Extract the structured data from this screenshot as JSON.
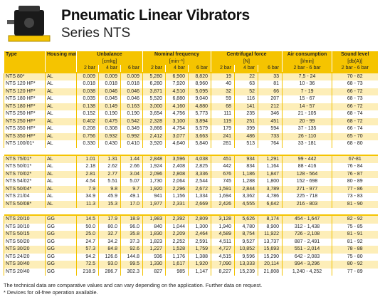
{
  "header": {
    "title": "Pneumatic Linear Vibrators",
    "subtitle": "Series NTS"
  },
  "table": {
    "head": [
      "Type",
      "Housing material",
      "Unbalance",
      "Nominal frequency",
      "Centrifugal force",
      "Air consumption",
      "Sound level"
    ],
    "units": [
      "[cmkg]",
      "[min⁻¹]",
      "[N]",
      "[l/min]",
      "[db(A)]"
    ],
    "pressures": [
      "2 bar",
      "4 bar",
      "6 bar",
      "2 bar",
      "4 bar",
      "6 bar",
      "2 bar",
      "4 bar",
      "6 bar",
      "2 bar - 6 bar",
      "2 bar - 6 bar"
    ],
    "groups": [
      [
        [
          "NTS 80*",
          "AL",
          "0.009",
          "0.009",
          "0.009",
          "5,280",
          "6,900",
          "8,820",
          "19",
          "22",
          "33",
          "7,5 - 24",
          "70 - 82"
        ],
        [
          "NTS 120 HF*",
          "AL",
          "0.018",
          "0.018",
          "0.018",
          "6,280",
          "7,920",
          "8,960",
          "40",
          "63",
          "81",
          "10 - 36",
          "68 - 73"
        ],
        [
          "NTS 120 HF*",
          "AL",
          "0.038",
          "0.046",
          "0.046",
          "3,871",
          "4,510",
          "5,095",
          "32",
          "52",
          "66",
          "7 - 19",
          "66 - 72"
        ],
        [
          "NTS 180 HF*",
          "AL",
          "0.035",
          "0.045",
          "0.046",
          "5,520",
          "6,880",
          "9,040",
          "59",
          "116",
          "207",
          "15 - 67",
          "68 - 73"
        ],
        [
          "NTS 180 HF*",
          "AL",
          "0.138",
          "0.149",
          "0.163",
          "3,000",
          "4,160",
          "4,880",
          "68",
          "141",
          "212",
          "14 - 57",
          "66 - 72"
        ],
        [
          "NTS 250 HF*",
          "AL",
          "0.152",
          "0.190",
          "0.190",
          "3,654",
          "4,756",
          "5,773",
          "111",
          "235",
          "346",
          "21 - 105",
          "68 - 74"
        ],
        [
          "NTS 250 HF*",
          "AL",
          "0.402",
          "0.475",
          "0.542",
          "2,328",
          "3,100",
          "3,894",
          "119",
          "251",
          "451",
          "20 - 99",
          "68 - 72"
        ],
        [
          "NTS 350 HF*",
          "AL",
          "0.208",
          "0.308",
          "0.349",
          "3,866",
          "4,754",
          "5,579",
          "179",
          "399",
          "594",
          "37 - 135",
          "66 - 74"
        ],
        [
          "NTS 350 HF*",
          "AL",
          "0.756",
          "0.932",
          "0.992",
          "2,412",
          "3,077",
          "3,663",
          "241",
          "486",
          "733",
          "26 - 110",
          "65 - 70"
        ],
        [
          "NTS 100/01*",
          "AL",
          "0.330",
          "0.430",
          "0.410",
          "3,920",
          "4,640",
          "5,840",
          "281",
          "513",
          "764",
          "33 - 181",
          "68 - 80"
        ]
      ],
      [
        [
          "NTS 75/01*",
          "AL",
          "1.01",
          "1.31",
          "1.44",
          "2,848",
          "3,596",
          "4,038",
          "451",
          "934",
          "1,291",
          "99 - 442",
          "67-81"
        ],
        [
          "NTS 50/01*",
          "AL",
          "2.18",
          "2.62",
          "2.66",
          "1,924",
          "2,408",
          "2,825",
          "442",
          "834",
          "1,164",
          "88 - 416",
          "76 - 84"
        ],
        [
          "NTS 70/02*",
          "AL",
          "2.81",
          "2.77",
          "3.04",
          "2,096",
          "2,808",
          "3,336",
          "676",
          "1,186",
          "1,847",
          "128 - 564",
          "76 - 87"
        ],
        [
          "NTS 54/02*",
          "AL",
          "4.54",
          "5.51",
          "5.07",
          "1,730",
          "2,064",
          "2,544",
          "745",
          "1,288",
          "1,800",
          "152 - 698",
          "80 - 89"
        ],
        [
          "NTS 50/04*",
          "AL",
          "7.9",
          "9.8",
          "9.7",
          "1,920",
          "2,296",
          "2,672",
          "1,591",
          "2,844",
          "3,789",
          "271 - 977",
          "77 - 86"
        ],
        [
          "NTS 21/04",
          "AL",
          "34.9",
          "45.9",
          "49.1",
          "941",
          "1,156",
          "1,334",
          "1,694",
          "3,362",
          "4,786",
          "225 - 718",
          "73 - 83"
        ],
        [
          "NTS 50/08*",
          "AL",
          "11.3",
          "15.3",
          "17.0",
          "1,977",
          "2,331",
          "2,669",
          "2,426",
          "4,555",
          "6,642",
          "216 - 803",
          "81 - 90"
        ]
      ],
      [
        [
          "NTS 20/10",
          "GG",
          "14.5",
          "17.9",
          "18.9",
          "1,983",
          "2,392",
          "2,809",
          "3,128",
          "5,626",
          "8,174",
          "454 - 1,647",
          "82 - 92"
        ],
        [
          "NTS 30/10",
          "GG",
          "50.0",
          "80.0",
          "96.0",
          "840",
          "1,044",
          "1,300",
          "1,940",
          "4,780",
          "8,900",
          "312 - 1,438",
          "75 - 85"
        ],
        [
          "NTS 50/15",
          "GG",
          "25.0",
          "32.7",
          "35.8",
          "1,830",
          "2,209",
          "2,464",
          "4,589",
          "8,754",
          "11,922",
          "726 - 2,108",
          "81 - 91"
        ],
        [
          "NTS 50/20",
          "GG",
          "24.7",
          "34.2",
          "37.3",
          "1,823",
          "2,252",
          "2,591",
          "4,511",
          "9,527",
          "13,737",
          "887 - 2,491",
          "81 - 92"
        ],
        [
          "NTS 30/20",
          "GG",
          "57.3",
          "84.8",
          "92.6",
          "1,227",
          "1,528",
          "1,759",
          "4,727",
          "10,852",
          "15,693",
          "551 - 2,014",
          "78 - 88"
        ],
        [
          "NTS 24/20",
          "GG",
          "94.2",
          "126.6",
          "144.8",
          "936",
          "1,176",
          "1,388",
          "4,515",
          "9,596",
          "15,290",
          "642 - 2,083",
          "75 - 80"
        ],
        [
          "NTS 30/40",
          "GG",
          "72.5",
          "93.0",
          "99.5",
          "1,330",
          "1,617",
          "1,920",
          "7,090",
          "13,333",
          "20,114",
          "994 - 3,296",
          "80 - 92"
        ],
        [
          "NTS 20/40",
          "GG",
          "218.9",
          "286.7",
          "302.3",
          "827",
          "985",
          "1,147",
          "8,227",
          "15,239",
          "21,808",
          "1,240 - 4,252",
          "77 - 89"
        ]
      ]
    ]
  },
  "footnotes": [
    "The technical data are comparative values and can vary depending on the application. Further data on request.",
    "* Devices for oil-free operation available."
  ]
}
